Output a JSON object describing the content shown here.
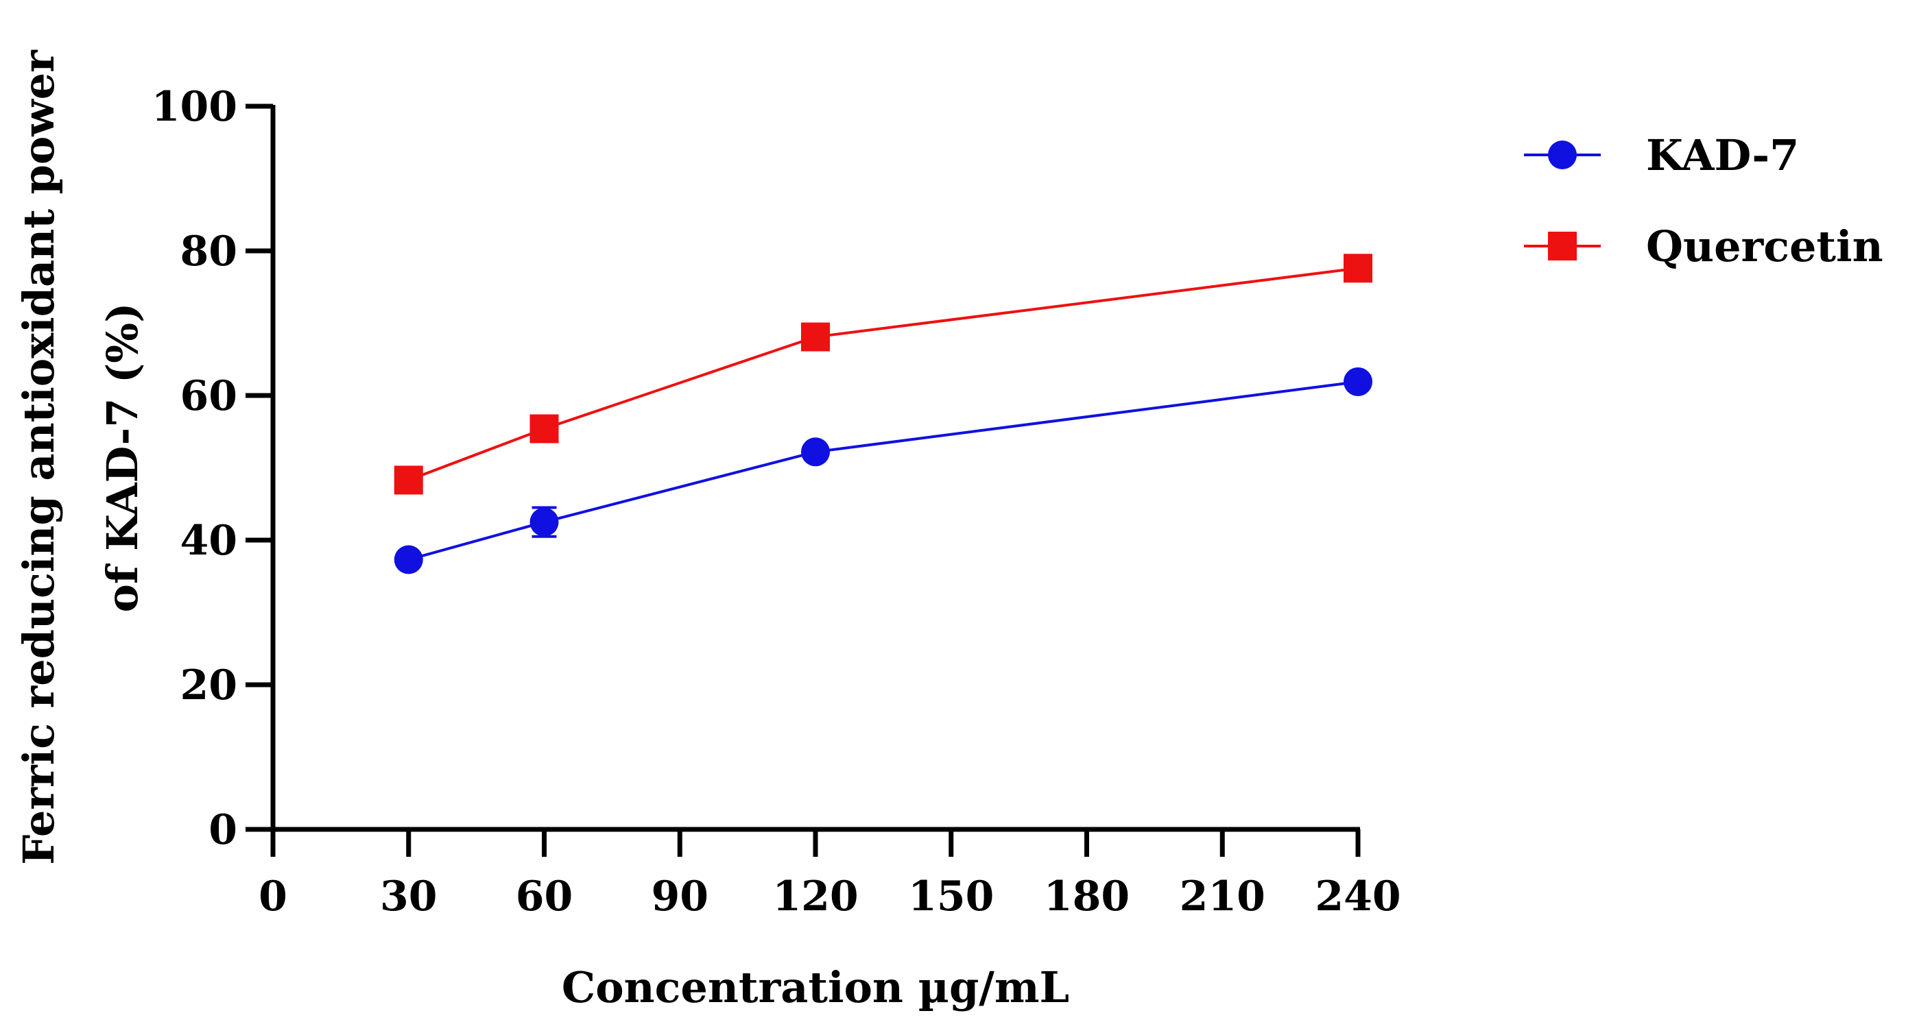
{
  "chart_data": {
    "type": "line",
    "title": "",
    "xlabel": "Concentration µg/mL",
    "ylabel_line1": "Ferric reducing antioxidant power",
    "ylabel_line2": "of KAD-7 (%)",
    "xlim": [
      0,
      240
    ],
    "ylim": [
      0,
      100
    ],
    "xticks": [
      0,
      30,
      60,
      90,
      120,
      150,
      180,
      210,
      240
    ],
    "yticks": [
      0,
      20,
      40,
      60,
      80,
      100
    ],
    "grid": false,
    "legend_position": "top-right (outside plot)",
    "series": [
      {
        "name": "KAD-7",
        "color": "#1010e0",
        "marker": "circle",
        "x": [
          30,
          60,
          120,
          240
        ],
        "y": [
          37.3,
          42.5,
          52.2,
          61.9
        ],
        "error": [
          0.8,
          2.0,
          0.8,
          0.8
        ]
      },
      {
        "name": "Quercetin",
        "color": "#ee1111",
        "marker": "square",
        "x": [
          30,
          60,
          120,
          240
        ],
        "y": [
          48.3,
          55.4,
          68.1,
          77.6
        ],
        "error": [
          0.5,
          0.5,
          0.5,
          0.5
        ]
      }
    ]
  }
}
